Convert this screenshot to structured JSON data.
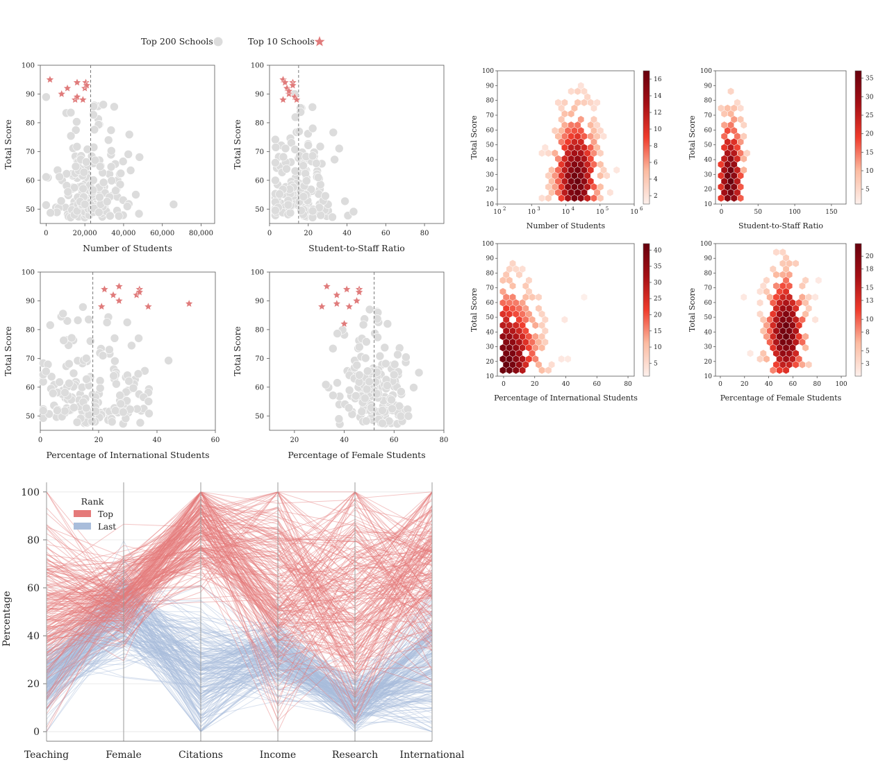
{
  "colors": {
    "gray_point": "#dcdcdc",
    "star": "#e07b7b",
    "top_line": "#e57a7a",
    "last_line": "#a9bddb",
    "hex_low": "#fdf0ec",
    "hex_high": "#67000d"
  },
  "legend": {
    "top200": "Top 200 Schools",
    "top10": "Top 10 Schools",
    "top200_marker": "circle",
    "top10_marker": "star"
  },
  "chart_data": [
    {
      "id": "scatter-students",
      "type": "scatter",
      "xlabel": "Number of Students",
      "ylabel": "Total Score",
      "xlim": [
        -3000,
        87000
      ],
      "ylim": [
        45,
        100
      ],
      "xticks": [
        0,
        20000,
        40000,
        60000,
        80000
      ],
      "xtick_labels": [
        "0",
        "20,000",
        "40,000",
        "60,000",
        "80,000"
      ],
      "yticks": [
        50,
        60,
        70,
        80,
        90,
        100
      ],
      "vline": 23000,
      "top10": [
        [
          2000,
          95
        ],
        [
          8000,
          90
        ],
        [
          11000,
          92
        ],
        [
          15000,
          88
        ],
        [
          16000,
          94
        ],
        [
          16000,
          89
        ],
        [
          19000,
          88
        ],
        [
          20000,
          92
        ],
        [
          20500,
          94
        ],
        [
          21000,
          93
        ]
      ],
      "x_range_top200": [
        0,
        85000
      ]
    },
    {
      "id": "scatter-ratio",
      "type": "scatter",
      "xlabel": "Student-to-Staff Ratio",
      "ylabel": "Total Score",
      "xlim": [
        0,
        90
      ],
      "ylim": [
        45,
        100
      ],
      "xticks": [
        0,
        20,
        40,
        60,
        80
      ],
      "yticks": [
        50,
        60,
        70,
        80,
        90,
        100
      ],
      "vline": 15,
      "top10": [
        [
          7,
          95
        ],
        [
          7,
          88
        ],
        [
          8,
          94
        ],
        [
          9,
          92
        ],
        [
          10,
          90
        ],
        [
          12,
          94
        ],
        [
          12,
          93
        ],
        [
          13,
          89
        ],
        [
          14,
          88
        ],
        [
          10,
          91
        ]
      ],
      "x_range_top200": [
        3,
        86
      ]
    },
    {
      "id": "scatter-intl",
      "type": "scatter",
      "xlabel": "Percentage of International Students",
      "ylabel": "Total Score",
      "xlim": [
        0,
        60
      ],
      "ylim": [
        45,
        100
      ],
      "xticks": [
        0,
        20,
        40,
        60
      ],
      "yticks": [
        50,
        60,
        70,
        80,
        90,
        100
      ],
      "vline": 18,
      "top10": [
        [
          21,
          88
        ],
        [
          22,
          94
        ],
        [
          25,
          92
        ],
        [
          27,
          95
        ],
        [
          27,
          90
        ],
        [
          33,
          92
        ],
        [
          34,
          94
        ],
        [
          34,
          93
        ],
        [
          37,
          88
        ],
        [
          51,
          89
        ]
      ],
      "x_range_top200": [
        1,
        54
      ]
    },
    {
      "id": "scatter-female",
      "type": "scatter",
      "xlabel": "Percentage of Female Students",
      "ylabel": "Total Score",
      "xlim": [
        10,
        80
      ],
      "ylim": [
        45,
        100
      ],
      "xticks": [
        20,
        40,
        60,
        80
      ],
      "yticks": [
        50,
        60,
        70,
        80,
        90,
        100
      ],
      "vline": 52,
      "top10": [
        [
          31,
          88
        ],
        [
          33,
          95
        ],
        [
          37,
          92
        ],
        [
          37,
          89
        ],
        [
          40,
          82
        ],
        [
          41,
          94
        ],
        [
          42,
          88
        ],
        [
          45,
          90
        ],
        [
          46,
          94
        ],
        [
          46,
          93
        ]
      ],
      "x_range_top200": [
        18,
        70
      ]
    },
    {
      "id": "hexbin-students",
      "type": "heatmap",
      "xlabel": "Number of Students",
      "ylabel": "Total Score",
      "xscale": "log",
      "xlim": [
        100,
        1000000
      ],
      "ylim": [
        10,
        100
      ],
      "xticks": [
        100,
        1000,
        10000,
        100000,
        1000000
      ],
      "xtick_labels": [
        "10",
        "10",
        "10",
        "10",
        "10"
      ],
      "xtick_exponents": [
        "2",
        "3",
        "4",
        "5",
        "6"
      ],
      "yticks": [
        10,
        20,
        30,
        40,
        50,
        60,
        70,
        80,
        90,
        100
      ],
      "cbar_ticks": [
        2,
        4,
        6,
        8,
        10,
        12,
        14,
        16
      ],
      "cbar_max": 17,
      "peak": [
        20000,
        25
      ],
      "spread": [
        0.35,
        18
      ]
    },
    {
      "id": "hexbin-ratio",
      "type": "heatmap",
      "xlabel": "Student-to-Staff Ratio",
      "ylabel": "Total Score",
      "xlim": [
        -8,
        170
      ],
      "ylim": [
        10,
        100
      ],
      "xticks": [
        0,
        50,
        100,
        150
      ],
      "yticks": [
        10,
        20,
        30,
        40,
        50,
        60,
        70,
        80,
        90,
        100
      ],
      "cbar_ticks": [
        5,
        10,
        15,
        20,
        25,
        30,
        35
      ],
      "cbar_max": 37,
      "peak": [
        12,
        25
      ],
      "spread": [
        10,
        18
      ]
    },
    {
      "id": "hexbin-intl",
      "type": "heatmap",
      "xlabel": "Percentage of International Students",
      "ylabel": "Total Score",
      "xlim": [
        -4,
        84
      ],
      "ylim": [
        10,
        100
      ],
      "xticks": [
        0,
        20,
        40,
        60,
        80
      ],
      "yticks": [
        10,
        20,
        30,
        40,
        50,
        60,
        70,
        80,
        90,
        100
      ],
      "cbar_ticks": [
        5,
        10,
        15,
        20,
        25,
        30,
        35,
        40
      ],
      "cbar_max": 42,
      "peak": [
        1,
        18
      ],
      "spread": [
        12,
        20
      ]
    },
    {
      "id": "hexbin-female",
      "type": "heatmap",
      "xlabel": "Percentage of Female Students",
      "ylabel": "Total Score",
      "xlim": [
        -4,
        104
      ],
      "ylim": [
        10,
        100
      ],
      "xticks": [
        0,
        20,
        40,
        60,
        80,
        100
      ],
      "yticks": [
        10,
        20,
        30,
        40,
        50,
        60,
        70,
        80,
        90,
        100
      ],
      "cbar_ticks": [
        3,
        5,
        8,
        10,
        13,
        15,
        18,
        20
      ],
      "cbar_max": 22,
      "peak": [
        54,
        40
      ],
      "spread": [
        9,
        16
      ]
    },
    {
      "id": "parallel-rank",
      "type": "line",
      "ylabel": "Percentage",
      "categories": [
        "Teaching",
        "Female",
        "Citations",
        "Income",
        "Research",
        "International"
      ],
      "ylim": [
        -4,
        104
      ],
      "yticks": [
        0,
        20,
        40,
        60,
        80,
        100
      ],
      "legend_title": "Rank",
      "series": [
        {
          "name": "Top",
          "profile": [
            50,
            58,
            85,
            60,
            55,
            70
          ],
          "spread": [
            20,
            8,
            12,
            25,
            25,
            22
          ]
        },
        {
          "name": "Last",
          "profile": [
            22,
            50,
            25,
            32,
            12,
            28
          ],
          "spread": [
            7,
            10,
            15,
            8,
            6,
            14
          ]
        }
      ]
    }
  ]
}
